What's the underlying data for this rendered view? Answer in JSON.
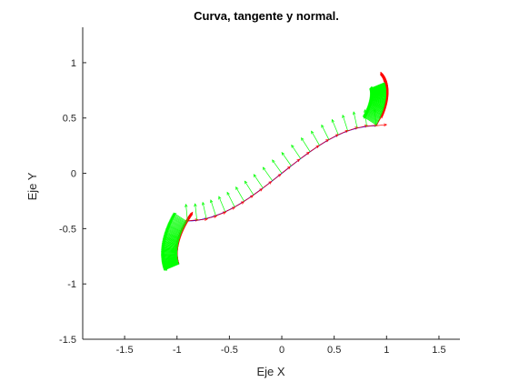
{
  "chart_data": {
    "type": "line",
    "title": "Curva, tangente y normal.",
    "xlabel": "Eje X",
    "ylabel": "Eje Y",
    "xlim": [
      -1.9,
      1.7
    ],
    "ylim": [
      -1.5,
      1.32
    ],
    "xticks": [
      -1.5,
      -1,
      -0.5,
      0,
      0.5,
      1,
      1.5
    ],
    "xtick_labels": [
      "-1.5",
      "-1",
      "-0.5",
      "0",
      "0.5",
      "1",
      "1.5"
    ],
    "yticks": [
      -1.5,
      -1,
      -0.5,
      0,
      0.5,
      1
    ],
    "ytick_labels": [
      "-1.5",
      "-1",
      "-0.5",
      "0",
      "0.5",
      "1"
    ],
    "grid": false,
    "curve": {
      "kind": "symmetric double spiral (Euler-like)",
      "center_upper": [
        0.9,
        0.88
      ],
      "center_lower": [
        -0.9,
        -0.88
      ],
      "max_radius": 0.45,
      "inner_radius": 0.1,
      "sample_count": 200
    },
    "series": [
      {
        "role": "curve",
        "color": "#0000ff"
      },
      {
        "role": "tangent vectors",
        "color": "#ff0000",
        "arrow_length": 0.1
      },
      {
        "role": "normal vectors",
        "color": "#00ff00",
        "arrow_length": 0.15
      }
    ]
  }
}
